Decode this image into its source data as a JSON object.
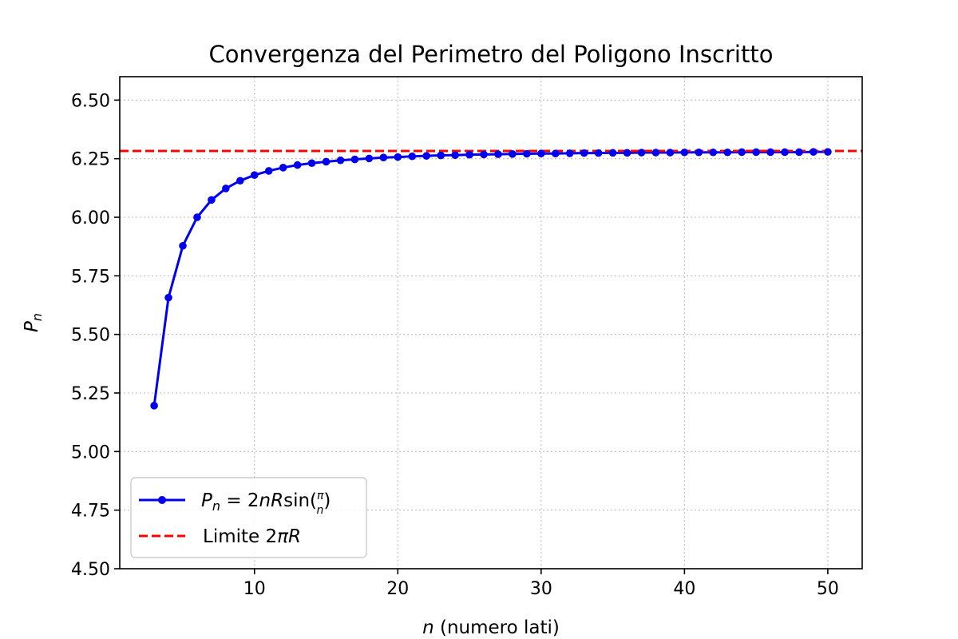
{
  "chart_data": {
    "type": "line",
    "title": "Convergenza del Perimetro del Poligono Inscritto",
    "xlabel": {
      "var": "n",
      "rest": " (numero lati)"
    },
    "ylabel": {
      "var": "P",
      "sub": "n"
    },
    "xlim": [
      0.6,
      52.4
    ],
    "ylim": [
      4.5,
      6.6
    ],
    "x_ticks": [
      10,
      20,
      30,
      40,
      50
    ],
    "x_tick_labels": [
      "10",
      "20",
      "30",
      "40",
      "50"
    ],
    "y_ticks": [
      4.5,
      4.75,
      5.0,
      5.25,
      5.5,
      5.75,
      6.0,
      6.25,
      6.5
    ],
    "y_tick_labels": [
      "4.50",
      "4.75",
      "5.00",
      "5.25",
      "5.50",
      "5.75",
      "6.00",
      "6.25",
      "6.50"
    ],
    "grid": true,
    "legend_position": "lower-left",
    "series": [
      {
        "name": "P_n = 2nR sin(π/n)",
        "color": "#0000ee",
        "marker": "circle",
        "x": [
          3,
          4,
          5,
          6,
          7,
          8,
          9,
          10,
          11,
          12,
          13,
          14,
          15,
          16,
          17,
          18,
          19,
          20,
          21,
          22,
          23,
          24,
          25,
          26,
          27,
          28,
          29,
          30,
          31,
          32,
          33,
          34,
          35,
          36,
          37,
          38,
          39,
          40,
          41,
          42,
          43,
          44,
          45,
          46,
          47,
          48,
          49,
          50
        ],
        "y": [
          5.196,
          5.657,
          5.878,
          6.0,
          6.074,
          6.123,
          6.156,
          6.18,
          6.198,
          6.212,
          6.223,
          6.231,
          6.237,
          6.243,
          6.247,
          6.251,
          6.255,
          6.257,
          6.26,
          6.262,
          6.264,
          6.265,
          6.267,
          6.268,
          6.269,
          6.27,
          6.271,
          6.272,
          6.272,
          6.273,
          6.274,
          6.274,
          6.275,
          6.275,
          6.276,
          6.276,
          6.276,
          6.277,
          6.277,
          6.277,
          6.277,
          6.278,
          6.278,
          6.278,
          6.278,
          6.278,
          6.279,
          6.279
        ]
      },
      {
        "name": "Limite 2πR",
        "color": "#ff0000",
        "style": "dashed",
        "y_constant": 6.283
      }
    ],
    "legend": [
      {
        "type": "formula",
        "color": "#0000ee"
      },
      {
        "type": "text",
        "text": "Limite 2",
        "italic": "πR",
        "color": "#ff0000"
      }
    ]
  }
}
